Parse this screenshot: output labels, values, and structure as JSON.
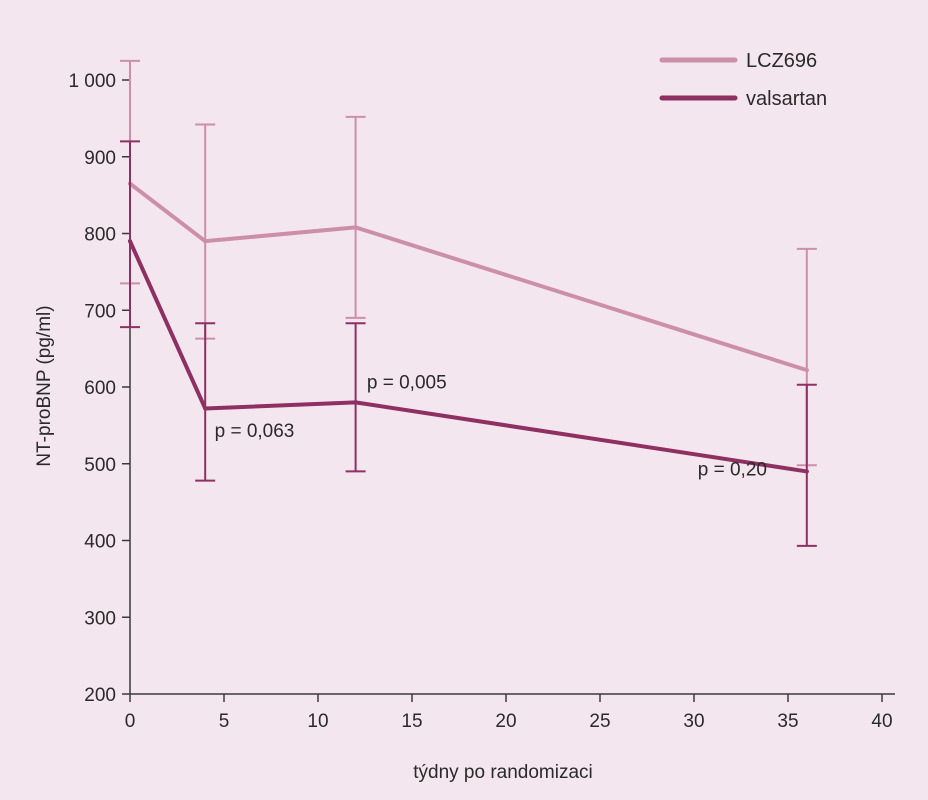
{
  "chart_data": {
    "type": "line",
    "xlabel": "týdny po randomizaci",
    "ylabel": "NT-proBNP (pg/ml)",
    "xlim": [
      0,
      40
    ],
    "ylim": [
      200,
      1000
    ],
    "x_ticks": [
      0,
      5,
      10,
      15,
      20,
      25,
      30,
      35,
      40
    ],
    "y_ticks": [
      200,
      300,
      400,
      500,
      600,
      700,
      800,
      900,
      1000
    ],
    "y_tick_labels": [
      "200",
      "300",
      "400",
      "500",
      "600",
      "700",
      "800",
      "900",
      "1 000"
    ],
    "grid": false,
    "legend_position": "top-right",
    "series": [
      {
        "name": "LCZ696",
        "color": "#cc8fa9",
        "x": [
          0,
          4,
          12,
          36
        ],
        "y": [
          865,
          790,
          808,
          622
        ],
        "err_low": [
          735,
          663,
          690,
          498
        ],
        "err_high": [
          1025,
          942,
          952,
          780
        ]
      },
      {
        "name": "valsartan",
        "color": "#8e3062",
        "x": [
          0,
          4,
          12,
          36
        ],
        "y": [
          790,
          572,
          580,
          490
        ],
        "err_low": [
          678,
          478,
          490,
          393
        ],
        "err_high": [
          920,
          683,
          683,
          603
        ]
      }
    ],
    "annotations": [
      {
        "text": "p = 0,063",
        "x": 4.5,
        "y": 535
      },
      {
        "text": "p = 0,005",
        "x": 12.6,
        "y": 598
      },
      {
        "text": "p = 0,20",
        "x": 30.2,
        "y": 485
      }
    ]
  }
}
